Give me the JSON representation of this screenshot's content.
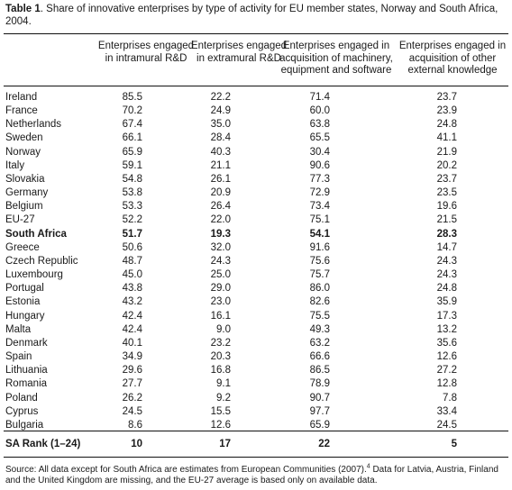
{
  "caption": {
    "label": "Table 1",
    "text": ". Share of innovative enterprises by type of activity for EU member states, Norway and South Africa, 2004."
  },
  "headers": [
    "Enterprises engaged in intramural R&D",
    "Enterprises engaged in extramural R&D",
    "Enterprises engaged in acquisition of machinery, equipment and software",
    "Enterprises engaged in acquisition of other external knowledge"
  ],
  "rows": [
    {
      "country": "Ireland",
      "v": [
        "85.5",
        "22.2",
        "71.4",
        "23.7"
      ]
    },
    {
      "country": "France",
      "v": [
        "70.2",
        "24.9",
        "60.0",
        "23.9"
      ]
    },
    {
      "country": "Netherlands",
      "v": [
        "67.4",
        "35.0",
        "63.8",
        "24.8"
      ]
    },
    {
      "country": "Sweden",
      "v": [
        "66.1",
        "28.4",
        "65.5",
        "41.1"
      ]
    },
    {
      "country": "Norway",
      "v": [
        "65.9",
        "40.3",
        "30.4",
        "21.9"
      ]
    },
    {
      "country": "Italy",
      "v": [
        "59.1",
        "21.1",
        "90.6",
        "20.2"
      ]
    },
    {
      "country": "Slovakia",
      "v": [
        "54.8",
        "26.1",
        "77.3",
        "23.7"
      ]
    },
    {
      "country": "Germany",
      "v": [
        "53.8",
        "20.9",
        "72.9",
        "23.5"
      ]
    },
    {
      "country": "Belgium",
      "v": [
        "53.3",
        "26.4",
        "73.4",
        "19.6"
      ]
    },
    {
      "country": "EU-27",
      "v": [
        "52.2",
        "22.0",
        "75.1",
        "21.5"
      ]
    },
    {
      "country": "South Africa",
      "v": [
        "51.7",
        "19.3",
        "54.1",
        "28.3"
      ],
      "bold": true
    },
    {
      "country": "Greece",
      "v": [
        "50.6",
        "32.0",
        "91.6",
        "14.7"
      ]
    },
    {
      "country": "Czech Republic",
      "v": [
        "48.7",
        "24.3",
        "75.6",
        "24.3"
      ]
    },
    {
      "country": "Luxembourg",
      "v": [
        "45.0",
        "25.0",
        "75.7",
        "24.3"
      ]
    },
    {
      "country": "Portugal",
      "v": [
        "43.8",
        "29.0",
        "86.0",
        "24.8"
      ]
    },
    {
      "country": "Estonia",
      "v": [
        "43.2",
        "23.0",
        "82.6",
        "35.9"
      ]
    },
    {
      "country": "Hungary",
      "v": [
        "42.4",
        "16.1",
        "75.5",
        "17.3"
      ]
    },
    {
      "country": "Malta",
      "v": [
        "42.4",
        "9.0",
        "49.3",
        "13.2"
      ]
    },
    {
      "country": "Denmark",
      "v": [
        "40.1",
        "23.2",
        "63.2",
        "35.6"
      ]
    },
    {
      "country": "Spain",
      "v": [
        "34.9",
        "20.3",
        "66.6",
        "12.6"
      ]
    },
    {
      "country": "Lithuania",
      "v": [
        "29.6",
        "16.8",
        "86.5",
        "27.2"
      ]
    },
    {
      "country": "Romania",
      "v": [
        "27.7",
        "9.1",
        "78.9",
        "12.8"
      ]
    },
    {
      "country": "Poland",
      "v": [
        "26.2",
        "9.2",
        "90.7",
        "7.8"
      ]
    },
    {
      "country": "Cyprus",
      "v": [
        "24.5",
        "15.5",
        "97.7",
        "33.4"
      ]
    },
    {
      "country": "Bulgaria",
      "v": [
        "8.6",
        "12.6",
        "65.9",
        "24.5"
      ]
    }
  ],
  "rank": {
    "label": "SA Rank (1–24)",
    "v": [
      "10",
      "17",
      "22",
      "5"
    ]
  },
  "source": {
    "text_a": "Source: All data except for South Africa are estimates from European Communities (2007).",
    "sup": "4",
    "text_b": " Data for Latvia, Austria, Finland and the United Kingdom are missing, and the EU-27 average is based only on available data."
  }
}
